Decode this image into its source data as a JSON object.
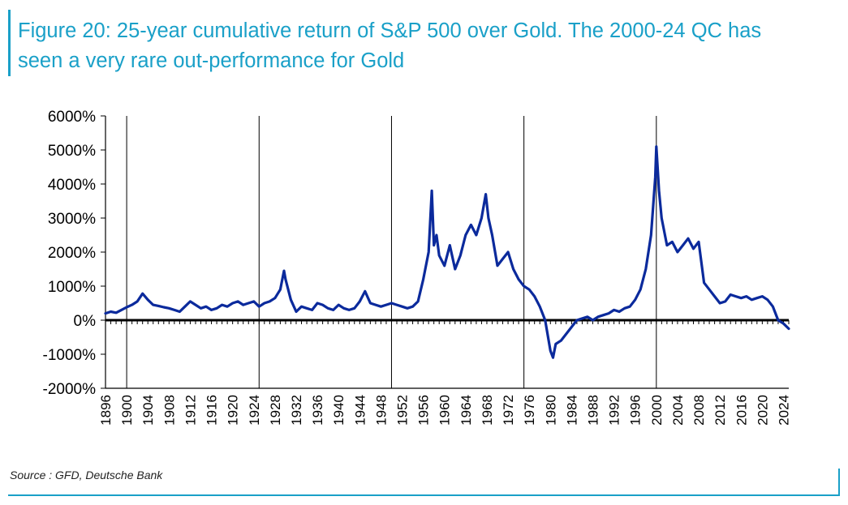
{
  "title_line1": "Figure 20: 25-year cumulative return of S&P 500 over Gold. The 2000-24 QC has",
  "title_line2": "seen a very rare out-performance for Gold",
  "source": "Source : GFD, Deutsche Bank",
  "colors": {
    "accent": "#1aa0c8",
    "series": "#0b2a9c",
    "axis": "#000000"
  },
  "chart_data": {
    "type": "line",
    "title": "25-year cumulative return of S&P 500 over Gold",
    "xlabel": "",
    "ylabel": "",
    "xlim": [
      1896,
      2025
    ],
    "ylim": [
      -2000,
      6000
    ],
    "yticks": [
      -2000,
      -1000,
      0,
      1000,
      2000,
      3000,
      4000,
      5000,
      6000
    ],
    "ytick_labels": [
      "-2000%",
      "-1000%",
      "0%",
      "1000%",
      "2000%",
      "3000%",
      "4000%",
      "5000%",
      "6000%"
    ],
    "xticks": [
      1896,
      1900,
      1904,
      1908,
      1912,
      1916,
      1920,
      1924,
      1928,
      1932,
      1936,
      1940,
      1944,
      1948,
      1952,
      1956,
      1960,
      1964,
      1968,
      1972,
      1976,
      1980,
      1984,
      1988,
      1992,
      1996,
      2000,
      2004,
      2008,
      2012,
      2016,
      2020,
      2024
    ],
    "vlines": [
      1900,
      1925,
      1950,
      1975,
      2000
    ],
    "series": [
      {
        "name": "S&P 500 over Gold 25-year cumulative return",
        "x": [
          1896,
          1897,
          1898,
          1899,
          1900,
          1901,
          1902,
          1903,
          1904,
          1905,
          1906,
          1907,
          1908,
          1909,
          1910,
          1911,
          1912,
          1913,
          1914,
          1915,
          1916,
          1917,
          1918,
          1919,
          1920,
          1921,
          1922,
          1923,
          1924,
          1925,
          1926,
          1927,
          1928,
          1929,
          1929.7,
          1930,
          1931,
          1932,
          1933,
          1934,
          1935,
          1936,
          1937,
          1938,
          1939,
          1940,
          1941,
          1942,
          1943,
          1944,
          1945,
          1946,
          1947,
          1948,
          1949,
          1950,
          1951,
          1952,
          1953,
          1954,
          1955,
          1956,
          1957,
          1957.6,
          1958,
          1958.5,
          1959,
          1960,
          1961,
          1962,
          1963,
          1964,
          1965,
          1966,
          1967,
          1967.8,
          1968.3,
          1969,
          1970,
          1971,
          1972,
          1973,
          1974,
          1975,
          1976,
          1977,
          1978,
          1979,
          1980,
          1980.5,
          1981,
          1982,
          1983,
          1984,
          1985,
          1986,
          1987,
          1988,
          1989,
          1990,
          1991,
          1992,
          1993,
          1994,
          1995,
          1996,
          1997,
          1998,
          1999,
          1999.8,
          2000,
          2000.5,
          2001,
          2002,
          2003,
          2004,
          2005,
          2006,
          2007,
          2008,
          2009,
          2010,
          2011,
          2012,
          2013,
          2014,
          2015,
          2016,
          2017,
          2018,
          2019,
          2020,
          2021,
          2022,
          2023,
          2024,
          2025
        ],
        "values": [
          200,
          250,
          220,
          300,
          380,
          450,
          550,
          780,
          600,
          450,
          420,
          380,
          350,
          300,
          250,
          400,
          550,
          450,
          350,
          400,
          300,
          350,
          450,
          400,
          500,
          550,
          450,
          500,
          550,
          400,
          500,
          550,
          650,
          900,
          1450,
          1200,
          600,
          250,
          400,
          350,
          300,
          500,
          450,
          350,
          300,
          450,
          350,
          300,
          350,
          550,
          850,
          500,
          450,
          400,
          450,
          500,
          450,
          400,
          350,
          400,
          550,
          1200,
          2000,
          3800,
          2200,
          2500,
          1900,
          1600,
          2200,
          1500,
          1900,
          2500,
          2800,
          2500,
          3000,
          3700,
          3000,
          2500,
          1600,
          1800,
          2000,
          1500,
          1200,
          1000,
          900,
          700,
          400,
          0,
          -900,
          -1100,
          -700,
          -600,
          -400,
          -200,
          0,
          50,
          100,
          0,
          100,
          150,
          200,
          300,
          250,
          350,
          400,
          600,
          900,
          1500,
          2500,
          4200,
          5100,
          3800,
          3000,
          2200,
          2300,
          2000,
          2200,
          2400,
          2100,
          2300,
          1100,
          900,
          700,
          500,
          550,
          750,
          700,
          650,
          700,
          600,
          650,
          700,
          600,
          400,
          0,
          -100,
          -250
        ]
      }
    ]
  }
}
